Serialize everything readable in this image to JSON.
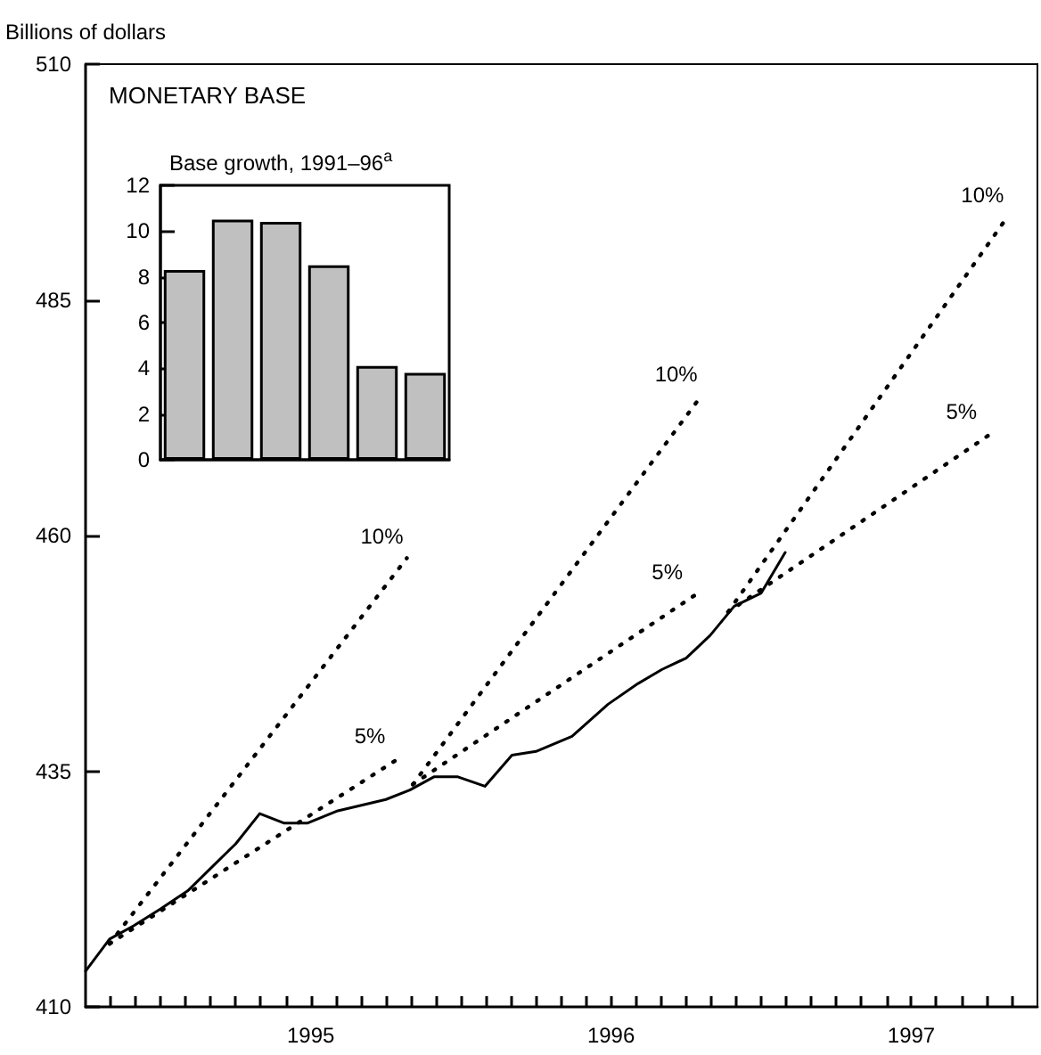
{
  "chart_data": [
    {
      "type": "line",
      "title": "MONETARY BASE",
      "ylabel": "Billions of dollars",
      "xlim": [
        1994.75,
        1997.92
      ],
      "ylim": [
        410,
        510
      ],
      "yticks": [
        410,
        435,
        460,
        485,
        510
      ],
      "xticks": [
        {
          "value": 1994.833,
          "label": null
        },
        {
          "value": 1994.917,
          "label": null
        },
        {
          "value": 1995,
          "label": null
        },
        {
          "value": 1995.083,
          "label": null
        },
        {
          "value": 1995.167,
          "label": null
        },
        {
          "value": 1995.25,
          "label": null
        },
        {
          "value": 1995.333,
          "label": null
        },
        {
          "value": 1995.417,
          "label": null
        },
        {
          "value": 1995.5,
          "label": "1995"
        },
        {
          "value": 1995.583,
          "label": null
        },
        {
          "value": 1995.667,
          "label": null
        },
        {
          "value": 1995.75,
          "label": null
        },
        {
          "value": 1995.833,
          "label": null
        },
        {
          "value": 1995.917,
          "label": null
        },
        {
          "value": 1996,
          "label": null
        },
        {
          "value": 1996.083,
          "label": null
        },
        {
          "value": 1996.167,
          "label": null
        },
        {
          "value": 1996.25,
          "label": null
        },
        {
          "value": 1996.333,
          "label": null
        },
        {
          "value": 1996.417,
          "label": null
        },
        {
          "value": 1996.5,
          "label": "1996"
        },
        {
          "value": 1996.583,
          "label": null
        },
        {
          "value": 1996.667,
          "label": null
        },
        {
          "value": 1996.75,
          "label": null
        },
        {
          "value": 1996.833,
          "label": null
        },
        {
          "value": 1996.917,
          "label": null
        },
        {
          "value": 1997,
          "label": null
        },
        {
          "value": 1997.083,
          "label": null
        },
        {
          "value": 1997.167,
          "label": null
        },
        {
          "value": 1997.25,
          "label": null
        },
        {
          "value": 1997.333,
          "label": null
        },
        {
          "value": 1997.417,
          "label": null
        },
        {
          "value": 1997.5,
          "label": "1997"
        },
        {
          "value": 1997.583,
          "label": null
        },
        {
          "value": 1997.667,
          "label": null
        },
        {
          "value": 1997.75,
          "label": null
        },
        {
          "value": 1997.833,
          "label": null
        }
      ],
      "grid": false,
      "marker": "none",
      "series": [
        {
          "color": "#000000",
          "line_style": "solid",
          "x": [
            1994.75,
            1994.83,
            1994.91,
            1995.0,
            1995.09,
            1995.17,
            1995.25,
            1995.33,
            1995.41,
            1995.49,
            1995.59,
            1995.75,
            1995.83,
            1995.91,
            1995.99,
            1996.08,
            1996.17,
            1996.25,
            1996.37,
            1996.49,
            1996.59,
            1996.67,
            1996.75,
            1996.83,
            1996.91,
            1997.0,
            1997.08
          ],
          "values": [
            413.8,
            417.2,
            418.6,
            420.4,
            422.3,
            424.8,
            427.3,
            430.5,
            429.5,
            429.5,
            430.8,
            432.0,
            433.0,
            434.4,
            434.4,
            433.4,
            436.7,
            437.1,
            438.7,
            442.1,
            444.3,
            445.8,
            447.0,
            449.4,
            452.5,
            453.9,
            458.2
          ]
        },
        {
          "name": "10%",
          "color": "#000000",
          "line_style": "dotted",
          "x": [
            1994.83,
            1995.82
          ],
          "values": [
            416.7,
            457.6
          ]
        },
        {
          "name": "5%",
          "color": "#000000",
          "line_style": "dotted",
          "x": [
            1994.83,
            1995.8
          ],
          "values": [
            416.7,
            436.5
          ]
        },
        {
          "name": "10%",
          "color": "#000000",
          "line_style": "dotted",
          "x": [
            1995.84,
            1996.8
          ],
          "values": [
            433.6,
            474.8
          ]
        },
        {
          "name": "5%",
          "color": "#000000",
          "line_style": "dotted",
          "x": [
            1995.84,
            1996.79
          ],
          "values": [
            433.6,
            453.9
          ]
        },
        {
          "name": "10%",
          "color": "#000000",
          "line_style": "dotted",
          "x": [
            1996.89,
            1997.82
          ],
          "values": [
            451.9,
            493.8
          ]
        },
        {
          "name": "5%",
          "color": "#000000",
          "line_style": "dotted",
          "x": [
            1996.89,
            1997.77
          ],
          "values": [
            451.9,
            470.9
          ]
        }
      ]
    },
    {
      "type": "bar",
      "title": "Base growth, 1991–96$^{a}$",
      "categories": [
        null,
        null,
        null,
        null,
        null,
        null
      ],
      "values": [
        8.3,
        10.5,
        10.4,
        8.5,
        4.1,
        3.8
      ],
      "color": "#c0c0c0",
      "ylim": [
        0,
        12
      ],
      "yticks": [
        0,
        2,
        4,
        6,
        8,
        10,
        12
      ],
      "grid": false
    }
  ]
}
